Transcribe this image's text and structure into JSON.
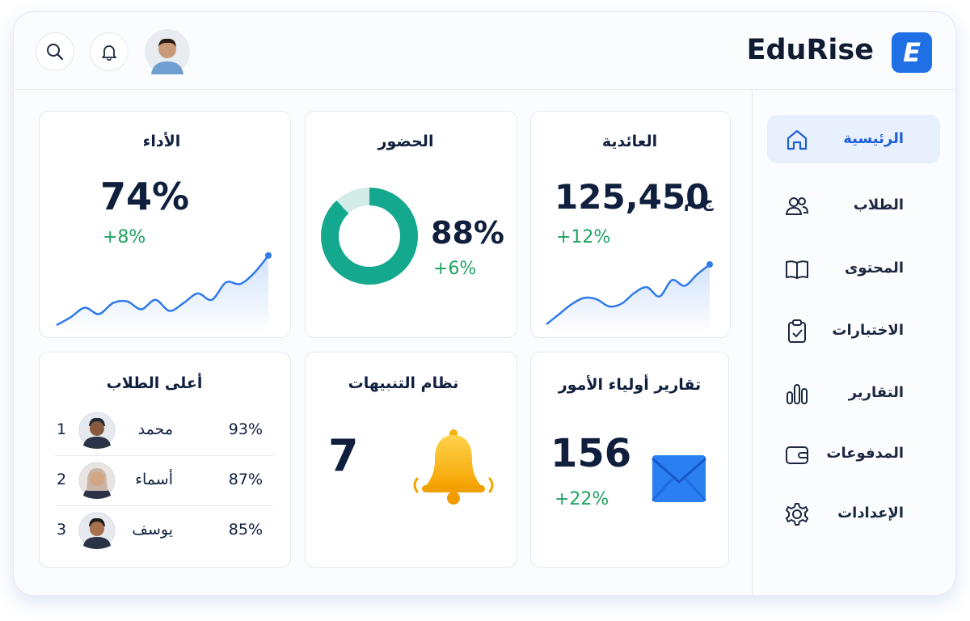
{
  "header": {
    "brand": "EduRise",
    "logo_letter": "E"
  },
  "sidebar": {
    "items": [
      {
        "label": "الرئيسية",
        "active": true
      },
      {
        "label": "الطلاب",
        "active": false
      },
      {
        "label": "المحتوى",
        "active": false
      },
      {
        "label": "الاختبارات",
        "active": false
      },
      {
        "label": "التقارير",
        "active": false
      },
      {
        "label": "المدفوعات",
        "active": false
      },
      {
        "label": "الإعدادات",
        "active": false
      }
    ]
  },
  "cards": {
    "revenue": {
      "title": "العائدية",
      "value": "125,450",
      "currency": "ج.م",
      "change": "+12%",
      "trend": [
        8,
        22,
        36,
        45,
        43,
        33,
        37,
        52,
        60,
        47,
        70,
        62,
        78,
        92
      ]
    },
    "attendance": {
      "title": "الحضور",
      "value": 88,
      "value_label": "88%",
      "change": "+6%"
    },
    "performance": {
      "title": "الأداء",
      "value": 74,
      "value_label": "74%",
      "change": "+8%",
      "trend": [
        6,
        16,
        28,
        20,
        34,
        36,
        26,
        38,
        24,
        34,
        46,
        38,
        60,
        58,
        72,
        94
      ]
    },
    "parent_reports": {
      "title": "تقارير أولياء الأمور",
      "value": "156",
      "change": "+22%"
    },
    "alerts": {
      "title": "نظام التنبيهات",
      "value": "7"
    },
    "top_students": {
      "title": "أعلى الطلاب",
      "rows": [
        {
          "rank": "1",
          "name": "محمد",
          "score": "93%"
        },
        {
          "rank": "2",
          "name": "أسماء",
          "score": "87%"
        },
        {
          "rank": "3",
          "name": "يوسف",
          "score": "85%"
        }
      ]
    }
  }
}
